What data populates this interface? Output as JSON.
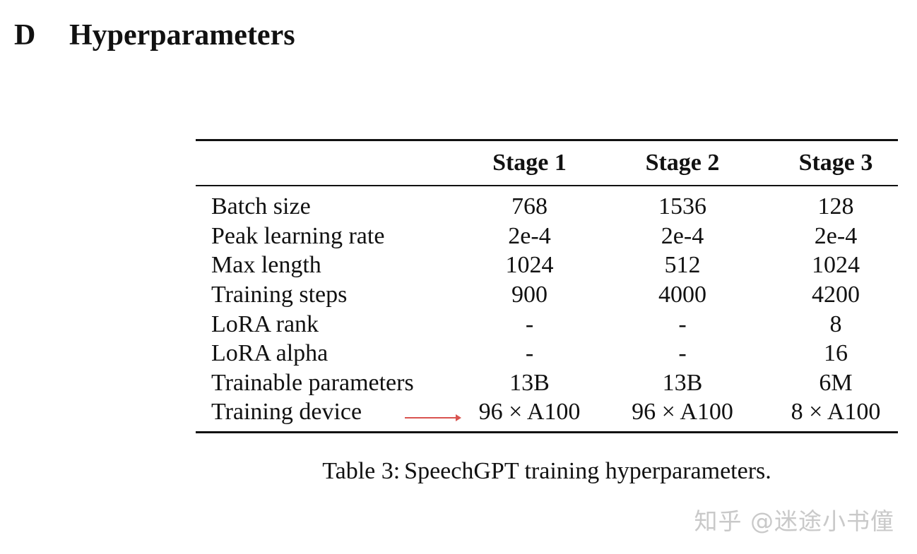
{
  "section": {
    "number": "D",
    "title": "Hyperparameters"
  },
  "table": {
    "columns": [
      "",
      "Stage 1",
      "Stage 2",
      "Stage 3"
    ],
    "rows": [
      {
        "label": "Batch size",
        "values": [
          "768",
          "1536",
          "128"
        ]
      },
      {
        "label": "Peak learning rate",
        "values": [
          "2e-4",
          "2e-4",
          "2e-4"
        ]
      },
      {
        "label": "Max length",
        "values": [
          "1024",
          "512",
          "1024"
        ]
      },
      {
        "label": "Training steps",
        "values": [
          "900",
          "4000",
          "4200"
        ]
      },
      {
        "label": "LoRA rank",
        "values": [
          "-",
          "-",
          "8"
        ]
      },
      {
        "label": "LoRA alpha",
        "values": [
          "-",
          "-",
          "16"
        ]
      },
      {
        "label": "Trainable parameters",
        "values": [
          "13B",
          "13B",
          "6M"
        ]
      },
      {
        "label": "Training device",
        "values": [
          "96 × A100",
          "96 × A100",
          "8 × A100"
        ]
      }
    ]
  },
  "caption": {
    "label": "Table 3:",
    "text": "SpeechGPT training hyperparameters."
  },
  "annotation": {
    "arrow_color": "#d9534f",
    "arrow_points_to": "Training device"
  },
  "watermark": {
    "text": "知乎 @迷途小书僮"
  }
}
